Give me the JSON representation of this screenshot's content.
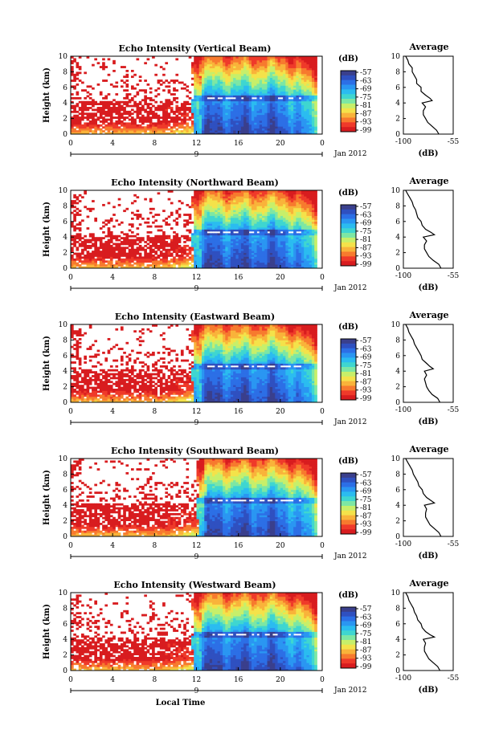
{
  "colors": {
    "scale": [
      "#3a3f8c",
      "#2f50c0",
      "#2c6fe6",
      "#2a96f2",
      "#2bbcf0",
      "#3fd6d0",
      "#7de7a4",
      "#c7ef6a",
      "#f4e24a",
      "#f9b33a",
      "#f77a2e",
      "#ef3a2a",
      "#d81c1f"
    ],
    "gap": "#ffffff",
    "line": "#000000"
  },
  "chart_data": [
    {
      "type": "heatmap",
      "title": "Echo Intensity (Vertical Beam)",
      "ylabel": "Height (km)",
      "xticks": [
        "0",
        "4",
        "8",
        "12",
        "16",
        "20",
        "0"
      ],
      "ylim": [
        0,
        10
      ],
      "yticks": [
        "0",
        "2",
        "4",
        "6",
        "8",
        "10"
      ],
      "date_marker": "9",
      "date_label": "Jan 2012",
      "colorbar": {
        "unit": "(dB)",
        "labels": [
          "-57",
          "-63",
          "-69",
          "-75",
          "-81",
          "-87",
          "-93",
          "-99"
        ]
      },
      "average": {
        "title": "Average",
        "xlim": [
          -100,
          -55
        ],
        "xticks": [
          "-100",
          "-55"
        ],
        "xlabel": "(dB)",
        "profile_height": [
          0,
          0.5,
          1,
          1.5,
          2,
          2.5,
          3,
          3.5,
          4,
          4.3,
          4.6,
          5,
          5.5,
          6,
          6.5,
          7,
          7.5,
          8,
          8.5,
          9,
          9.5,
          10
        ],
        "profile_db": [
          -68,
          -70,
          -74,
          -78,
          -80,
          -82,
          -82,
          -80,
          -83,
          -74,
          -76,
          -80,
          -84,
          -84,
          -88,
          -88,
          -90,
          -92,
          -92,
          -95,
          -96,
          -98
        ]
      }
    },
    {
      "type": "heatmap",
      "title": "Echo Intensity (Northward Beam)",
      "ylabel": "Height (km)",
      "xticks": [
        "0",
        "4",
        "8",
        "12",
        "16",
        "20",
        "0"
      ],
      "ylim": [
        0,
        10
      ],
      "yticks": [
        "0",
        "2",
        "4",
        "6",
        "8",
        "10"
      ],
      "date_marker": "9",
      "date_label": "Jan 2012",
      "colorbar": {
        "unit": "(dB)",
        "labels": [
          "-57",
          "-63",
          "-69",
          "-75",
          "-81",
          "-87",
          "-93",
          "-99"
        ]
      },
      "average": {
        "title": "Average",
        "xlim": [
          -100,
          -55
        ],
        "xticks": [
          "-100",
          "-55"
        ],
        "xlabel": "(dB)",
        "profile_height": [
          0,
          0.5,
          1,
          1.5,
          2,
          2.5,
          3,
          3.5,
          4,
          4.3,
          4.6,
          5,
          5.5,
          6,
          6.5,
          7,
          7.5,
          8,
          8.5,
          9,
          9.5,
          10
        ],
        "profile_db": [
          -66,
          -68,
          -73,
          -77,
          -79,
          -81,
          -81,
          -79,
          -82,
          -72,
          -75,
          -80,
          -83,
          -84,
          -87,
          -88,
          -89,
          -91,
          -92,
          -94,
          -96,
          -98
        ]
      }
    },
    {
      "type": "heatmap",
      "title": "Echo Intensity (Eastward Beam)",
      "ylabel": "Height (km)",
      "xticks": [
        "0",
        "4",
        "8",
        "12",
        "16",
        "20",
        "0"
      ],
      "ylim": [
        0,
        10
      ],
      "yticks": [
        "0",
        "2",
        "4",
        "6",
        "8",
        "10"
      ],
      "date_marker": "9",
      "date_label": "Jan 2012",
      "colorbar": {
        "unit": "(dB)",
        "labels": [
          "-57",
          "-63",
          "-69",
          "-75",
          "-81",
          "-87",
          "-93",
          "-99"
        ]
      },
      "average": {
        "title": "Average",
        "xlim": [
          -100,
          -55
        ],
        "xticks": [
          "-100",
          "-55"
        ],
        "xlabel": "(dB)",
        "profile_height": [
          0,
          0.5,
          1,
          1.5,
          2,
          2.5,
          3,
          3.5,
          4,
          4.3,
          4.6,
          5,
          5.5,
          6,
          6.5,
          7,
          7.5,
          8,
          8.5,
          9,
          9.5,
          10
        ],
        "profile_db": [
          -67,
          -69,
          -74,
          -77,
          -79,
          -80,
          -81,
          -79,
          -81,
          -73,
          -76,
          -79,
          -83,
          -84,
          -86,
          -88,
          -90,
          -91,
          -93,
          -95,
          -96,
          -98
        ]
      }
    },
    {
      "type": "heatmap",
      "title": "Echo Intensity (Southward Beam)",
      "ylabel": "Height (km)",
      "xticks": [
        "0",
        "4",
        "8",
        "12",
        "16",
        "20",
        "0"
      ],
      "ylim": [
        0,
        10
      ],
      "yticks": [
        "0",
        "2",
        "4",
        "6",
        "8",
        "10"
      ],
      "date_marker": "9",
      "date_label": "Jan 2012",
      "colorbar": {
        "unit": "(dB)",
        "labels": [
          "-57",
          "-63",
          "-69",
          "-75",
          "-81",
          "-87",
          "-93",
          "-99"
        ]
      },
      "average": {
        "title": "Average",
        "xlim": [
          -100,
          -55
        ],
        "xticks": [
          "-100",
          "-55"
        ],
        "xlabel": "(dB)",
        "profile_height": [
          0,
          0.5,
          1,
          1.5,
          2,
          2.5,
          3,
          3.5,
          4,
          4.3,
          4.6,
          5,
          5.5,
          6,
          6.5,
          7,
          7.5,
          8,
          8.5,
          9,
          9.5,
          10
        ],
        "profile_db": [
          -66,
          -68,
          -72,
          -76,
          -78,
          -80,
          -80,
          -79,
          -81,
          -72,
          -75,
          -79,
          -82,
          -83,
          -86,
          -87,
          -89,
          -91,
          -92,
          -94,
          -96,
          -98
        ]
      }
    },
    {
      "type": "heatmap",
      "title": "Echo Intensity (Westward Beam)",
      "ylabel": "Height (km)",
      "xticks": [
        "0",
        "4",
        "8",
        "12",
        "16",
        "20",
        "0"
      ],
      "ylim": [
        0,
        10
      ],
      "yticks": [
        "0",
        "2",
        "4",
        "6",
        "8",
        "10"
      ],
      "date_marker": "9",
      "date_label": "Jan 2012",
      "xlabel": "Local Time",
      "colorbar": {
        "unit": "(dB)",
        "labels": [
          "-57",
          "-63",
          "-69",
          "-75",
          "-81",
          "-87",
          "-93",
          "-99"
        ]
      },
      "average": {
        "title": "Average",
        "xlim": [
          -100,
          -55
        ],
        "xticks": [
          "-100",
          "-55"
        ],
        "xlabel": "(dB)",
        "profile_height": [
          0,
          0.5,
          1,
          1.5,
          2,
          2.5,
          3,
          3.5,
          4,
          4.3,
          4.6,
          5,
          5.5,
          6,
          6.5,
          7,
          7.5,
          8,
          8.5,
          9,
          9.5,
          10
        ],
        "profile_db": [
          -67,
          -69,
          -73,
          -77,
          -79,
          -81,
          -81,
          -80,
          -82,
          -72,
          -76,
          -80,
          -83,
          -84,
          -87,
          -88,
          -90,
          -91,
          -93,
          -95,
          -96,
          -98
        ]
      }
    }
  ]
}
